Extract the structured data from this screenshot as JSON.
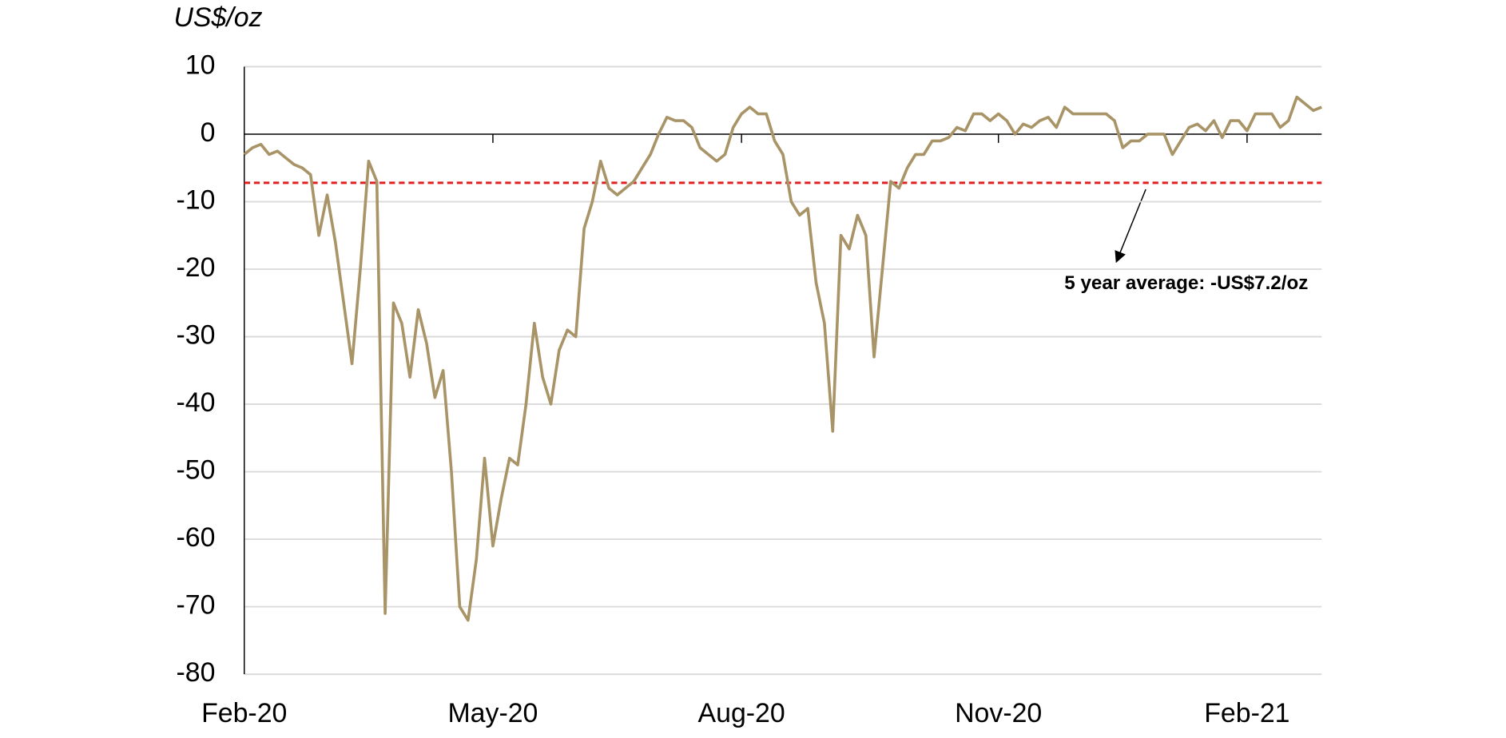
{
  "chart_data": {
    "type": "line",
    "y_label": "US$/oz",
    "color": "#a89467",
    "categories": [
      "Feb-20",
      null,
      null,
      null,
      null,
      null,
      null,
      null,
      null,
      null,
      null,
      null,
      null,
      null,
      null,
      null,
      null,
      null,
      null,
      null,
      null,
      null,
      null,
      null,
      null,
      null,
      null,
      null,
      null,
      null,
      "May-20",
      null,
      null,
      null,
      null,
      null,
      null,
      null,
      null,
      null,
      null,
      null,
      null,
      null,
      null,
      null,
      null,
      null,
      null,
      null,
      null,
      null,
      null,
      null,
      null,
      null,
      null,
      null,
      null,
      null,
      "Aug-20",
      null,
      null,
      null,
      null,
      null,
      null,
      null,
      null,
      null,
      null,
      null,
      null,
      null,
      null,
      null,
      null,
      null,
      null,
      null,
      null,
      null,
      null,
      null,
      null,
      null,
      null,
      null,
      null,
      null,
      null,
      "Nov-20",
      null,
      null,
      null,
      null,
      null,
      null,
      null,
      null,
      null,
      null,
      null,
      null,
      null,
      null,
      null,
      null,
      null,
      null,
      null,
      null,
      null,
      null,
      null,
      null,
      null,
      null,
      null,
      null,
      null,
      "Feb-21",
      null,
      null,
      null,
      null,
      null,
      null,
      null,
      null,
      null
    ],
    "values": [
      -3,
      -2,
      -1.5,
      -3,
      -2.5,
      -3.5,
      -4.5,
      -5,
      -6,
      -15,
      -9,
      -16,
      -25,
      -34,
      -20,
      -4,
      -7,
      -71,
      -25,
      -28,
      -36,
      -26,
      -31,
      -39,
      -35,
      -50,
      -70,
      -72,
      -63,
      -48,
      -61,
      -54,
      -48,
      -49,
      -40,
      -28,
      -36,
      -40,
      -32,
      -29,
      -30,
      -14,
      -10,
      -4,
      -8,
      -9,
      -8,
      -7,
      -5,
      -3,
      0,
      2.5,
      2,
      2,
      1,
      -2,
      -3,
      -4,
      -3,
      1,
      3,
      4,
      3,
      3,
      -1,
      -3,
      -10,
      -12,
      -11,
      -22,
      -28,
      -44,
      -15,
      -17,
      -12,
      -15,
      -33,
      -20,
      -7,
      -8,
      -5,
      -3,
      -3,
      -1,
      -1,
      -0.5,
      1,
      0.5,
      3,
      3,
      2,
      3,
      2,
      0,
      1.5,
      1,
      2,
      2.5,
      1,
      4,
      3,
      3,
      3,
      3,
      3,
      2,
      -2,
      -1,
      -1,
      0,
      0,
      0,
      -3,
      -1,
      1,
      1.5,
      0.5,
      2,
      -0.5,
      2,
      2,
      0.5,
      3,
      3,
      3,
      1,
      2,
      5.5,
      4.5,
      3.5,
      4
    ],
    "ylim": [
      -80,
      10
    ],
    "yticks": [
      -80,
      -70,
      -60,
      -50,
      -40,
      -30,
      -20,
      -10,
      0,
      10
    ],
    "grid": true,
    "reference_line": {
      "value": -7.2,
      "label": "5 year average: -US$7.2/oz",
      "color": "#e02020"
    }
  }
}
